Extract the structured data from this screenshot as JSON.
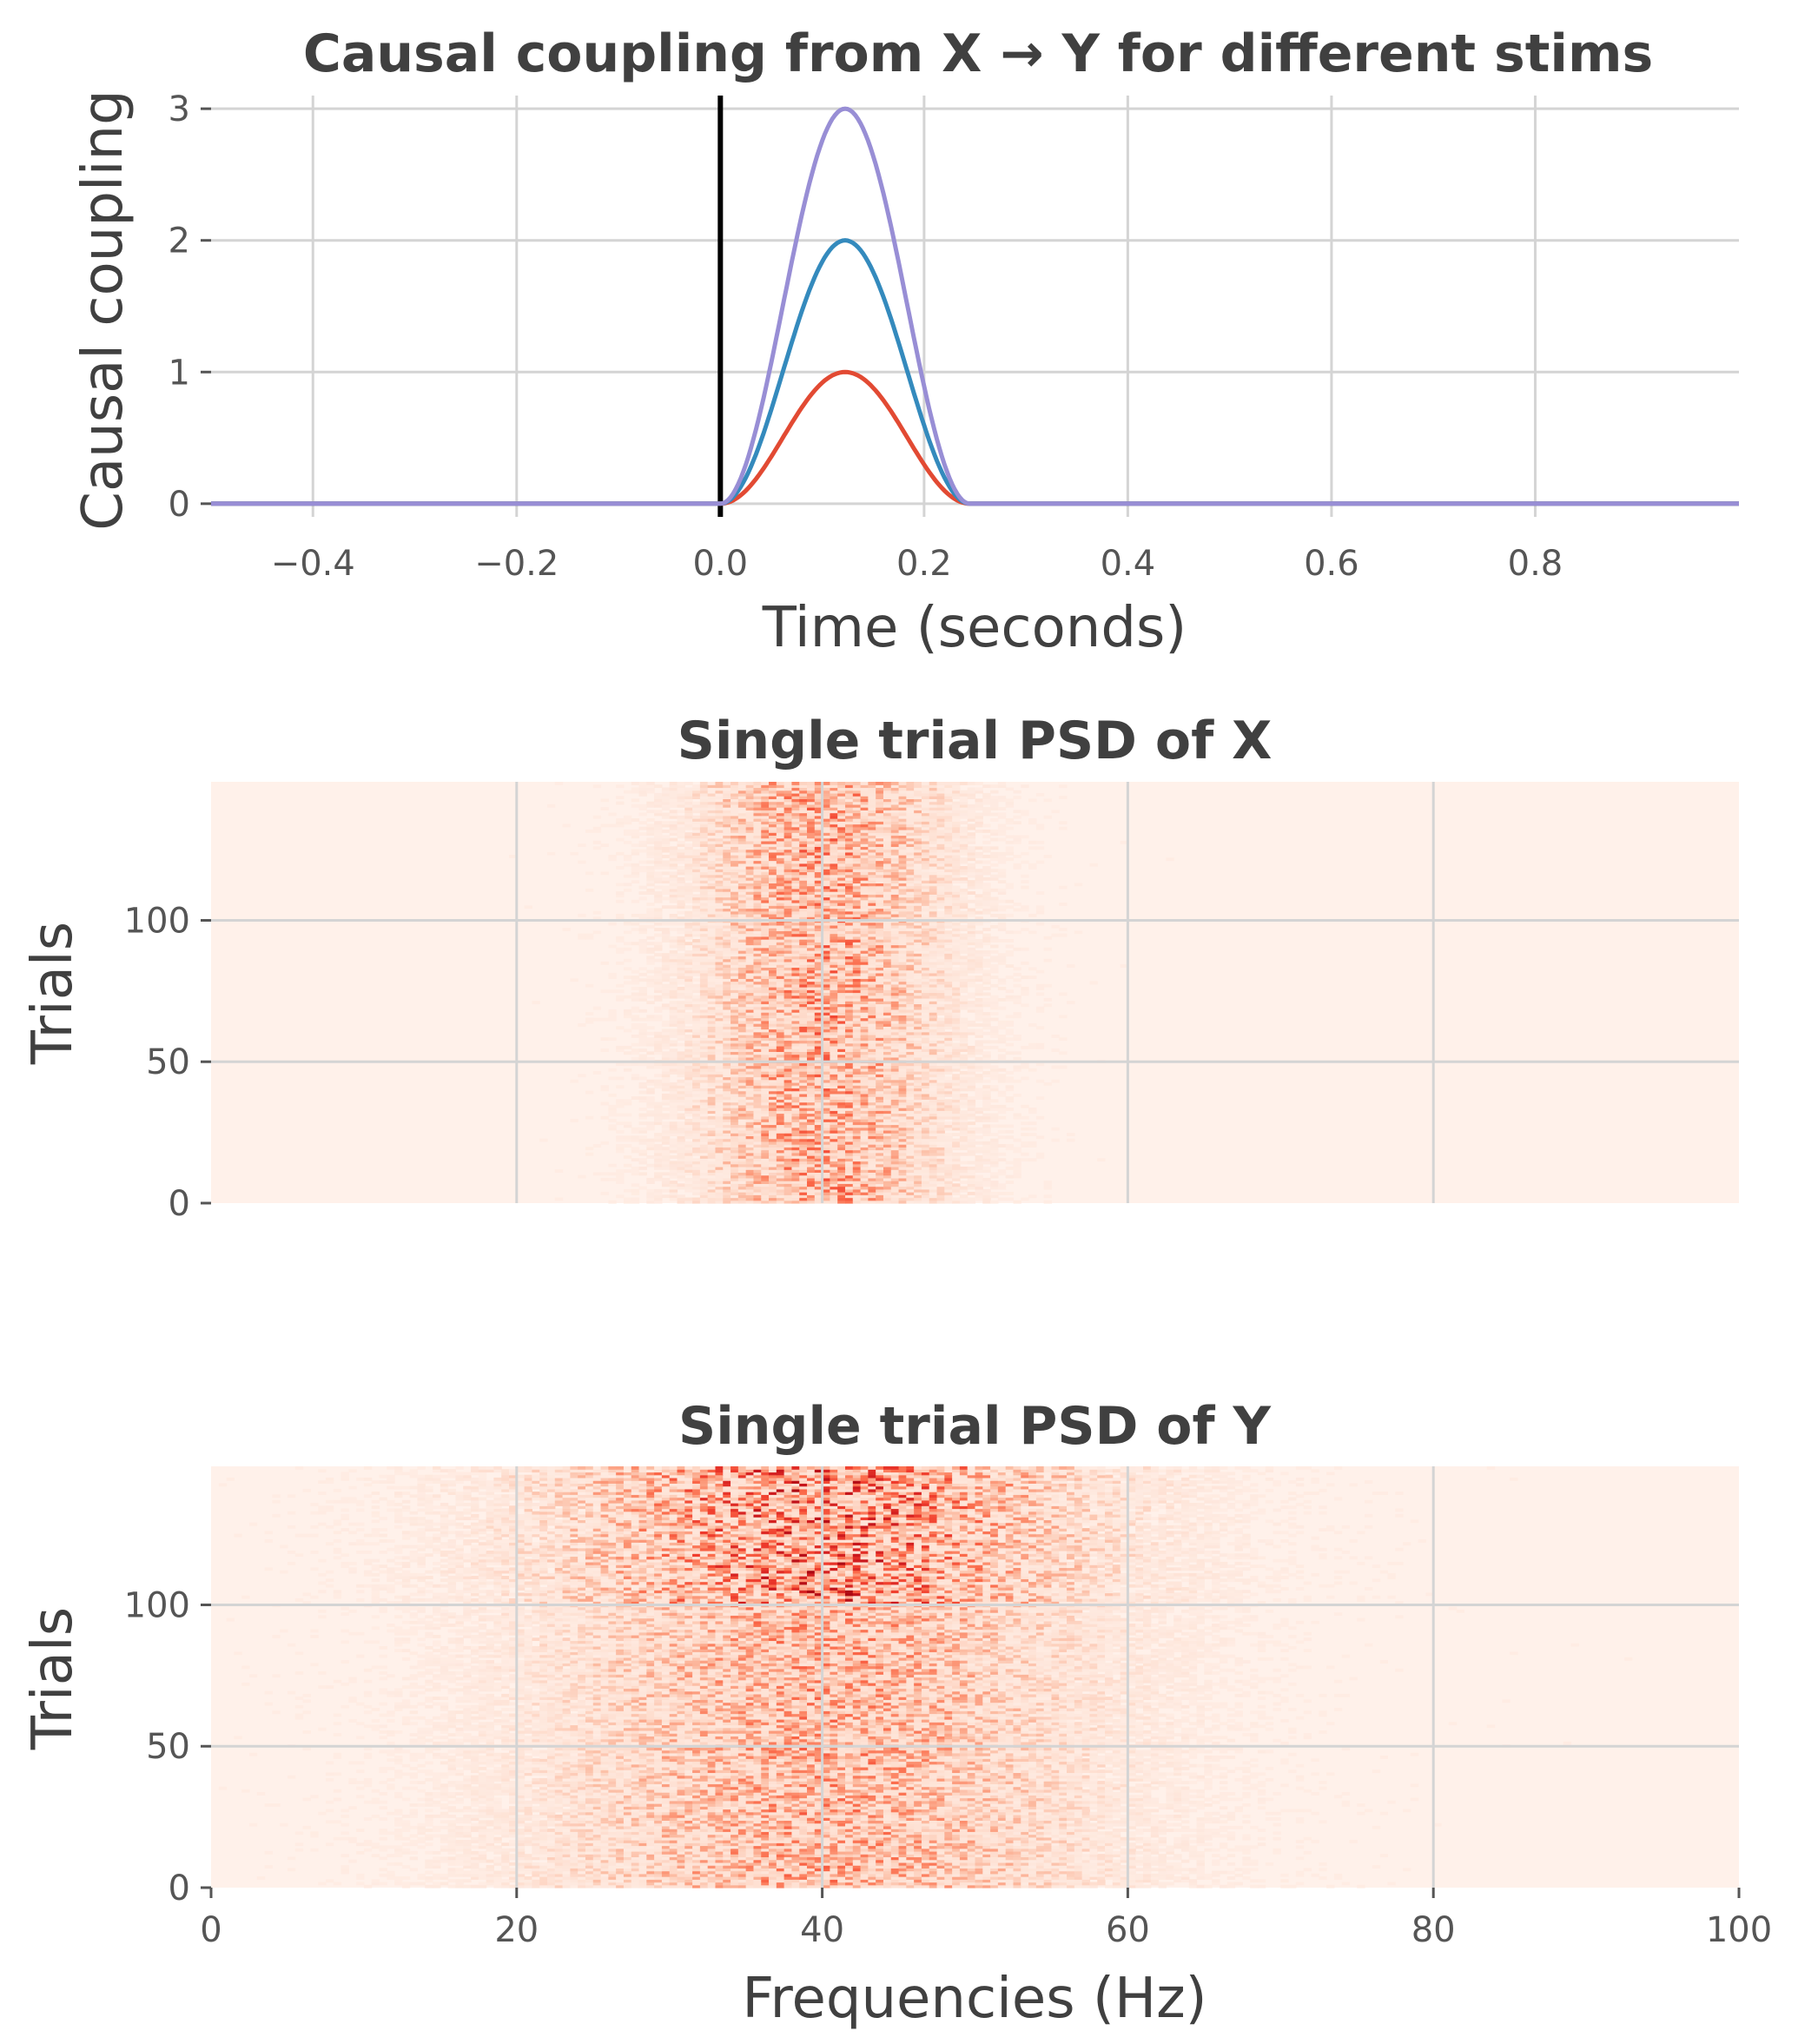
{
  "chart_data": [
    {
      "type": "line",
      "title": "Causal coupling from X → Y for different stims",
      "xlabel": "Time (seconds)",
      "ylabel": "Causal coupling",
      "xlim": [
        -0.5,
        1.0
      ],
      "ylim": [
        -0.1,
        3.1
      ],
      "xticks": [
        -0.4,
        -0.2,
        0.0,
        0.2,
        0.4,
        0.6,
        0.8
      ],
      "xtick_labels": [
        "−0.4",
        "−0.2",
        "0.0",
        "0.2",
        "0.4",
        "0.6",
        "0.8"
      ],
      "yticks": [
        0,
        1,
        2,
        3
      ],
      "ytick_labels": [
        "0",
        "1",
        "2",
        "3"
      ],
      "grid": true,
      "vertical_line": {
        "x": 0.0,
        "color": "#000000"
      },
      "x": [
        -0.5,
        0.0,
        0.02,
        0.04,
        0.06,
        0.08,
        0.1,
        0.12,
        0.14,
        0.16,
        0.18,
        0.2,
        0.22,
        0.24,
        0.25,
        0.5,
        1.0
      ],
      "series": [
        {
          "color": "#E24A33",
          "values": [
            0,
            0,
            0.07,
            0.25,
            0.5,
            0.75,
            0.93,
            1.0,
            0.93,
            0.75,
            0.5,
            0.25,
            0.07,
            0,
            0,
            0,
            0
          ]
        },
        {
          "color": "#348ABD",
          "values": [
            0,
            0,
            0.13,
            0.5,
            1.0,
            1.5,
            1.87,
            2.0,
            1.87,
            1.5,
            1.0,
            0.5,
            0.13,
            0,
            0,
            0,
            0
          ]
        },
        {
          "color": "#988ED5",
          "values": [
            0,
            0,
            0.2,
            0.75,
            1.5,
            2.25,
            2.8,
            3.0,
            2.8,
            2.25,
            1.5,
            0.75,
            0.2,
            0,
            0,
            0,
            0
          ]
        }
      ]
    },
    {
      "type": "heatmap",
      "title": "Single trial PSD of X",
      "xlabel": "",
      "ylabel": "Trials",
      "xlim": [
        0,
        100
      ],
      "ylim": [
        0,
        149
      ],
      "yticks": [
        0,
        50,
        100
      ],
      "ytick_labels": [
        "0",
        "50",
        "100"
      ],
      "colormap": "Reds",
      "grid": true,
      "peak_frequency_hz": 40,
      "peak_halfwidth_hz": 5
    },
    {
      "type": "heatmap",
      "title": "Single trial PSD of Y",
      "xlabel": "Frequencies (Hz)",
      "ylabel": "Trials",
      "xlim": [
        0,
        100
      ],
      "ylim": [
        0,
        149
      ],
      "xticks": [
        0,
        20,
        40,
        60,
        80,
        100
      ],
      "xtick_labels": [
        "0",
        "20",
        "40",
        "60",
        "80",
        "100"
      ],
      "yticks": [
        0,
        50,
        100
      ],
      "ytick_labels": [
        "0",
        "50",
        "100"
      ],
      "colormap": "Reds",
      "grid": true,
      "peak_frequency_hz": 40,
      "peak_halfwidth_hz": 11
    }
  ]
}
